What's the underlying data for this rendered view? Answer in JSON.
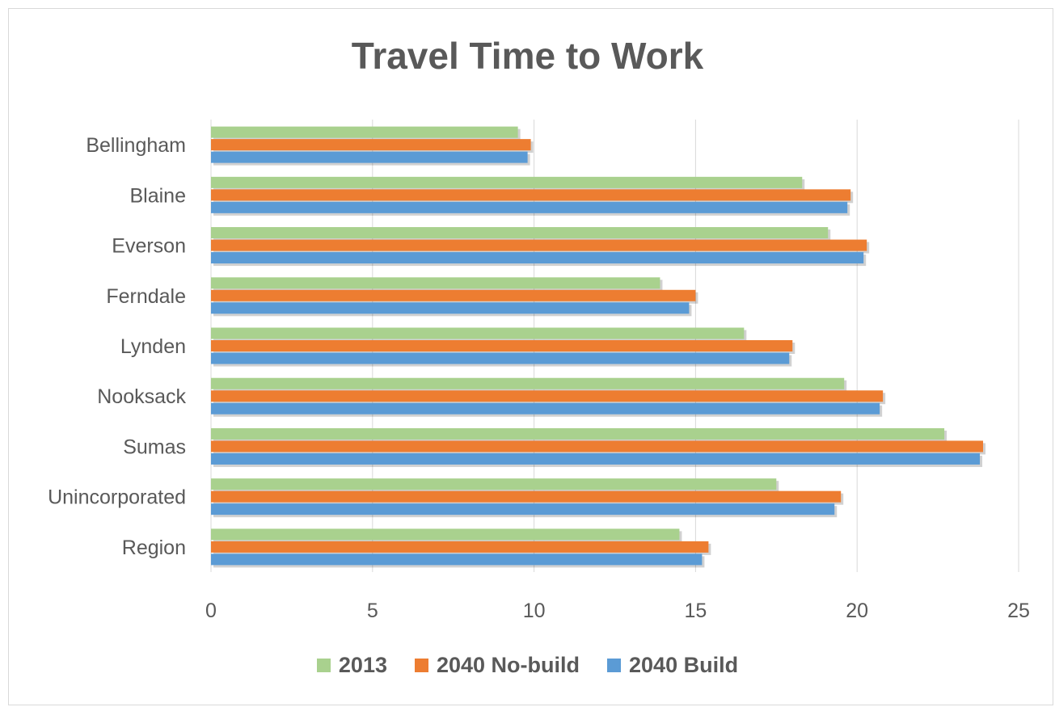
{
  "chart_data": {
    "type": "bar",
    "orientation": "horizontal",
    "title": "Travel Time to Work",
    "categories": [
      "Bellingham",
      "Blaine",
      "Everson",
      "Ferndale",
      "Lynden",
      "Nooksack",
      "Sumas",
      "Unincorporated",
      "Region"
    ],
    "series": [
      {
        "name": "2013",
        "color": "#a9d18e",
        "values": [
          9.5,
          18.3,
          19.1,
          13.9,
          16.5,
          19.6,
          22.7,
          17.5,
          14.5
        ]
      },
      {
        "name": "2040 No-build",
        "color": "#ed7d31",
        "values": [
          9.9,
          19.8,
          20.3,
          15.0,
          18.0,
          20.8,
          23.9,
          19.5,
          15.4
        ]
      },
      {
        "name": "2040 Build",
        "color": "#5b9bd5",
        "values": [
          9.8,
          19.7,
          20.2,
          14.8,
          17.9,
          20.7,
          23.8,
          19.3,
          15.2
        ]
      }
    ],
    "xlim": [
      0,
      25
    ],
    "x_ticks": [
      0,
      5,
      10,
      15,
      20,
      25
    ],
    "grid": true,
    "legend_position": "bottom"
  }
}
